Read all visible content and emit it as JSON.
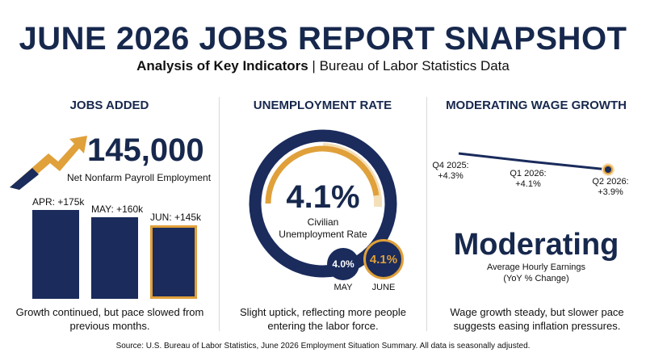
{
  "header": {
    "title": "JUNE 2026 JOBS REPORT SNAPSHOT",
    "subtitle_bold": "Analysis of Key Indicators",
    "subtitle_rest": " | Bureau of Labor Statistics Data"
  },
  "jobs": {
    "heading": "JOBS ADDED",
    "headline_value": "145,000",
    "headline_label": "Net Nonfarm Payroll Employment",
    "caption": "Growth continued, but pace slowed from previous months."
  },
  "unemployment": {
    "heading": "UNEMPLOYMENT RATE",
    "headline_value": "4.1%",
    "headline_label_1": "Civilian",
    "headline_label_2": "Unemployment Rate",
    "may_value": "4.0%",
    "may_label": "MAY",
    "june_value": "4.1%",
    "june_label": "JUNE",
    "caption": "Slight uptick, reflecting more people entering the labor force."
  },
  "wages": {
    "heading": "MODERATING WAGE GROWTH",
    "headline_value": "Moderating",
    "headline_label_1": "Average Hourly Earnings",
    "headline_label_2": "(YoY % Change)",
    "caption": "Wage growth steady, but slower pace suggests easing inflation pressures."
  },
  "source": "Source: U.S. Bureau of Labor Statistics, June 2026 Employment Situation Summary. All data is seasonally adjusted.",
  "colors": {
    "navy": "#1a2b5c",
    "gold": "#e0a03a",
    "light_gold": "#f3dfb8"
  },
  "chart_data": [
    {
      "type": "bar",
      "categories": [
        "APR",
        "MAY",
        "JUN"
      ],
      "labels": [
        "APR: +175k",
        "MAY: +160k",
        "JUN: +145k"
      ],
      "values": [
        175,
        160,
        145
      ],
      "highlight": "JUN"
    },
    {
      "type": "pie",
      "categories": [
        "MAY",
        "JUNE"
      ],
      "values": [
        4.0,
        4.1
      ]
    },
    {
      "type": "line",
      "categories": [
        "Q4 2025",
        "Q1 2026",
        "Q2 2026"
      ],
      "labels": [
        "Q4 2025:\n+4.3%",
        "Q1 2026:\n+4.1%",
        "Q2 2026:\n+3.9%"
      ],
      "values": [
        4.3,
        4.1,
        3.9
      ]
    }
  ]
}
